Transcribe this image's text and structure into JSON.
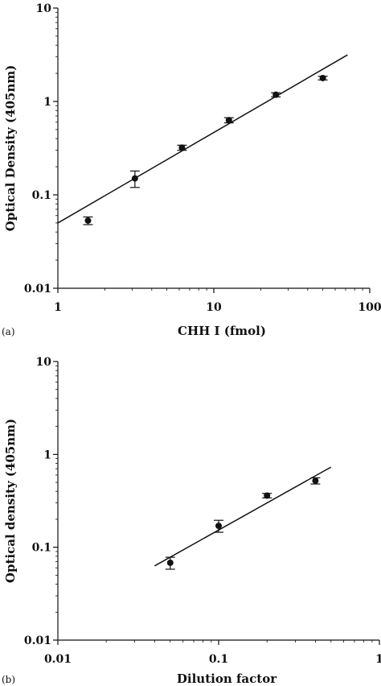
{
  "chart_data": [
    {
      "type": "scatter",
      "panel_label": "(a)",
      "title": "",
      "xlabel": "CHH I (fmol)",
      "ylabel": "Optical Density (405nm)",
      "xscale": "log",
      "yscale": "log",
      "xlim": [
        1,
        100
      ],
      "ylim": [
        0.01,
        10
      ],
      "grid": false,
      "x_ticks": [
        "1",
        "10",
        "100"
      ],
      "y_ticks": [
        "0.01",
        "0.1",
        "1",
        "10"
      ],
      "points": [
        {
          "x": 1.56,
          "y": 0.053,
          "err": 0.005
        },
        {
          "x": 3.12,
          "y": 0.15,
          "err": 0.03
        },
        {
          "x": 6.25,
          "y": 0.32,
          "err": 0.02
        },
        {
          "x": 12.5,
          "y": 0.63,
          "err": 0.04
        },
        {
          "x": 25,
          "y": 1.18,
          "err": 0.06
        },
        {
          "x": 50,
          "y": 1.78,
          "err": 0.08
        }
      ],
      "fit_line": {
        "x": [
          1,
          72
        ],
        "y": [
          0.05,
          3.15
        ]
      }
    },
    {
      "type": "scatter",
      "panel_label": "(b)",
      "title": "",
      "xlabel": "Dilution factor",
      "ylabel": "Optical density (405nm)",
      "xscale": "log",
      "yscale": "log",
      "xlim": [
        0.01,
        1
      ],
      "ylim": [
        0.01,
        10
      ],
      "grid": false,
      "x_ticks": [
        "0.01",
        "0.1",
        "1"
      ],
      "y_ticks": [
        "0.01",
        "0.1",
        "1",
        "10"
      ],
      "points": [
        {
          "x": 0.05,
          "y": 0.068,
          "err": 0.01
        },
        {
          "x": 0.1,
          "y": 0.17,
          "err": 0.025
        },
        {
          "x": 0.2,
          "y": 0.36,
          "err": 0.02
        },
        {
          "x": 0.4,
          "y": 0.52,
          "err": 0.04
        }
      ],
      "fit_line": {
        "x": [
          0.04,
          0.5
        ],
        "y": [
          0.063,
          0.73
        ]
      }
    }
  ]
}
